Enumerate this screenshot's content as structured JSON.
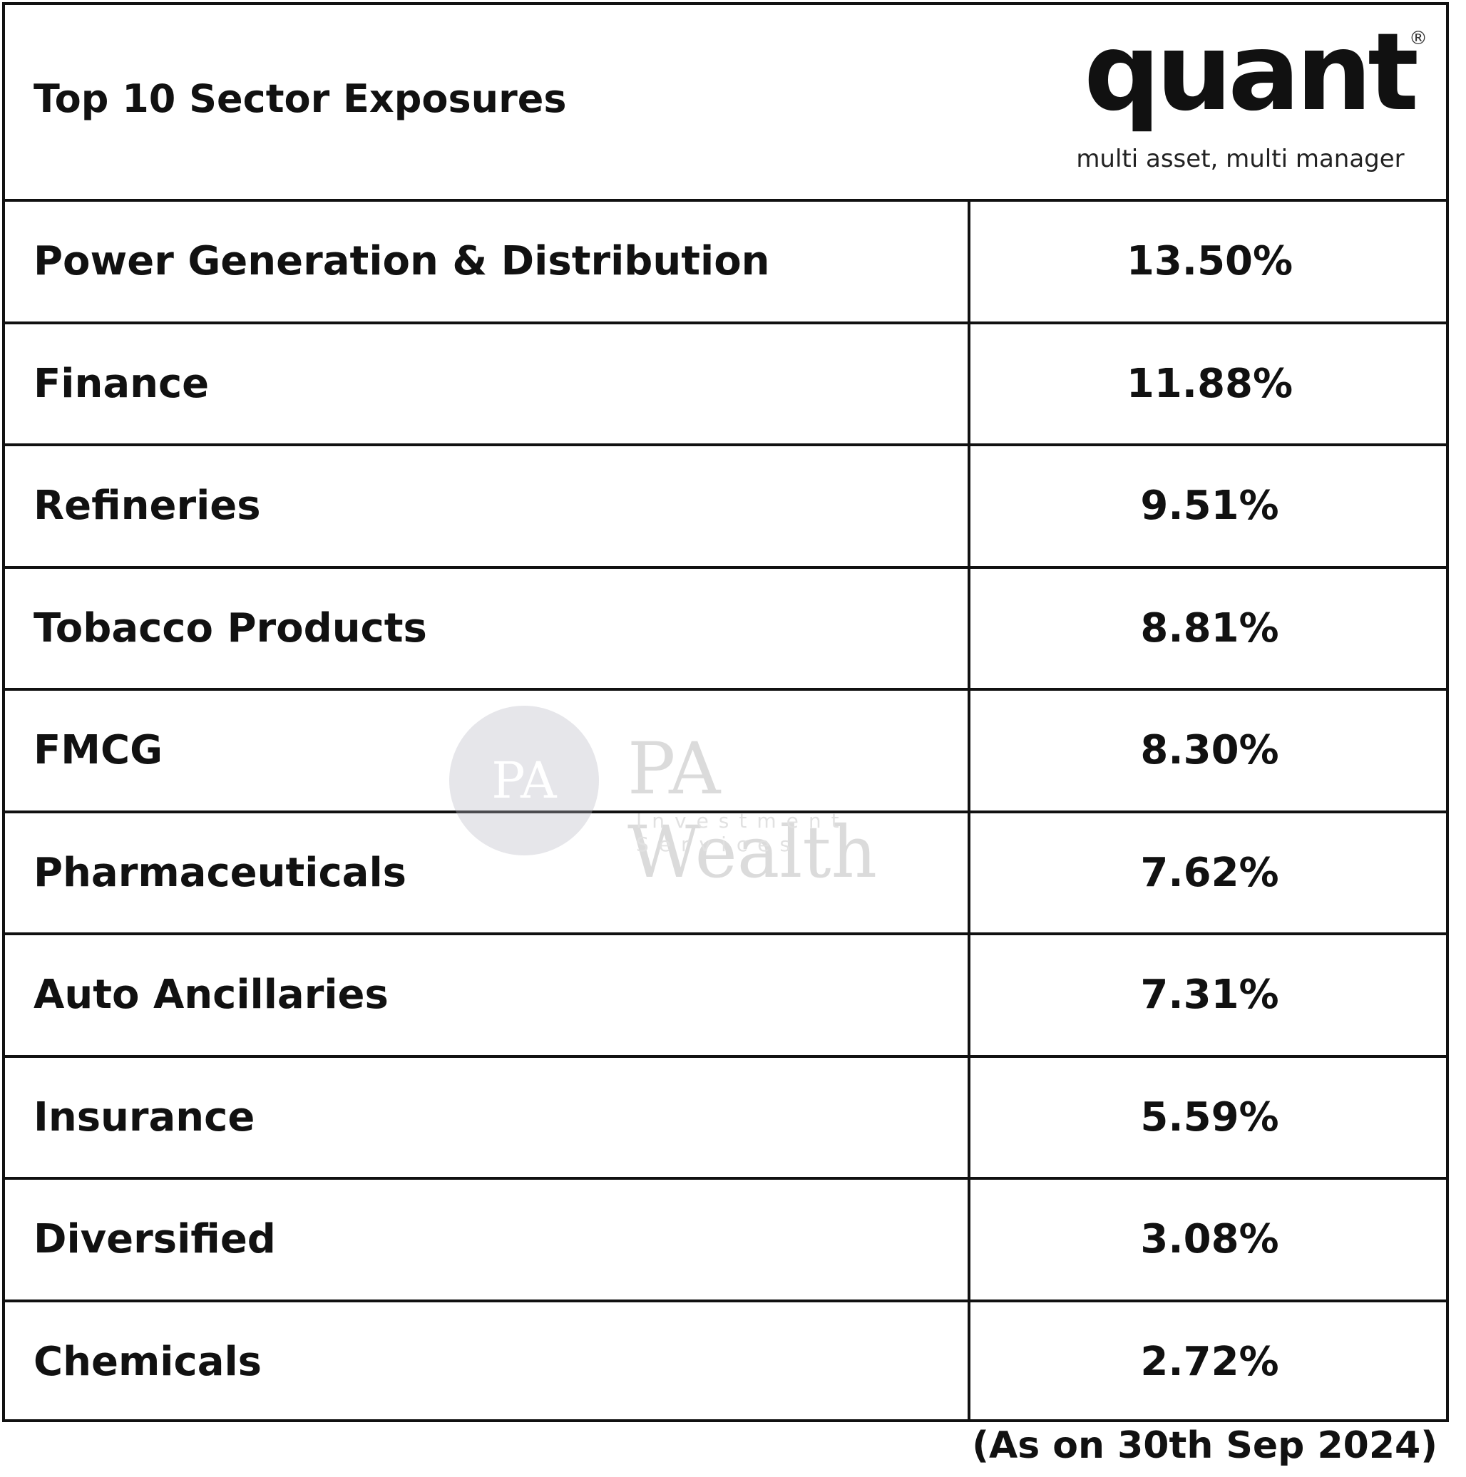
{
  "header": {
    "title": "Top 10 Sector Exposures",
    "logo": "quant",
    "tagline": "multi asset, multi manager"
  },
  "table": {
    "rows": [
      [
        "Power Generation & Distribution",
        "13.50%"
      ],
      [
        "Finance",
        "11.88%"
      ],
      [
        "Refineries",
        "9.51%"
      ],
      [
        "Tobacco Products",
        "8.81%"
      ],
      [
        "FMCG",
        "8.30%"
      ],
      [
        "Pharmaceuticals",
        "7.62%"
      ],
      [
        "Auto Ancillaries",
        "7.31%"
      ],
      [
        "Insurance",
        "5.59%"
      ],
      [
        "Diversified",
        "3.08%"
      ],
      [
        "Chemicals",
        "2.72%"
      ]
    ]
  },
  "watermark": {
    "name": "PA Wealth",
    "subtitle": "Investment Services",
    "badge": "PA"
  },
  "footer": {
    "note": "(As on 30th Sep 2024)"
  }
}
